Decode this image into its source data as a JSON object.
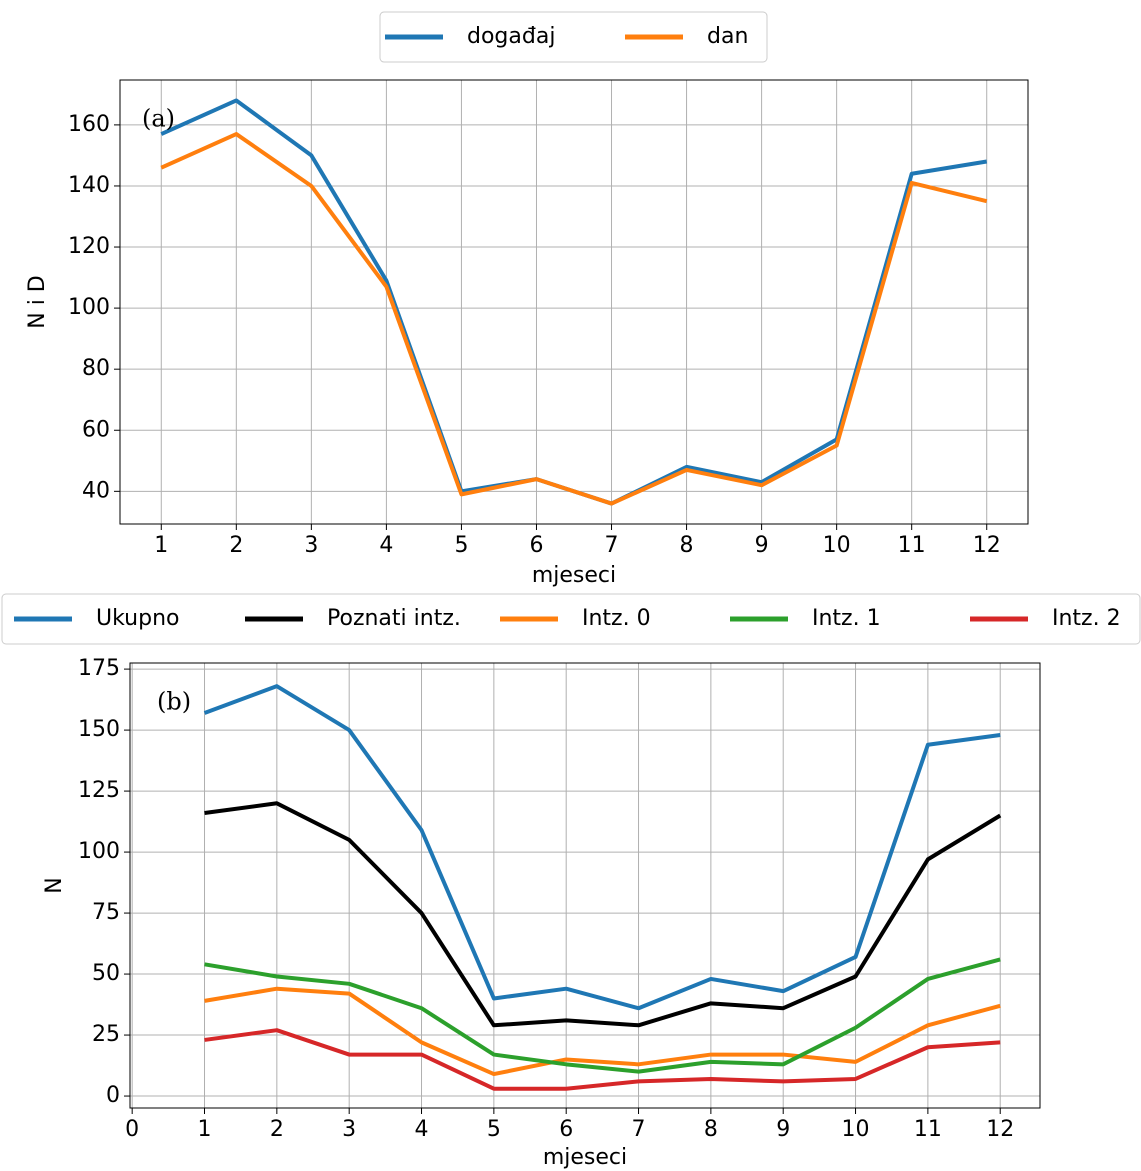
{
  "chart_data": [
    {
      "type": "line",
      "annotation": "(a)",
      "xlabel": "mjeseci",
      "ylabel": "N i D",
      "x": [
        1,
        2,
        3,
        4,
        5,
        6,
        7,
        8,
        9,
        10,
        11,
        12
      ],
      "series": [
        {
          "name": "događaj",
          "color": "#1f77b4",
          "values": [
            157,
            168,
            150,
            109,
            40,
            44,
            36,
            48,
            43,
            57,
            144,
            148
          ]
        },
        {
          "name": "dan",
          "color": "#ff7f0e",
          "values": [
            146,
            157,
            140,
            107,
            39,
            44,
            36,
            47,
            42,
            55,
            141,
            135
          ]
        }
      ],
      "xlim": [
        0.45,
        12.55
      ],
      "xticks": [
        1,
        2,
        3,
        4,
        5,
        6,
        7,
        8,
        9,
        10,
        11,
        12
      ],
      "ylim": [
        29.3,
        174.7
      ],
      "yticks": [
        40,
        60,
        80,
        100,
        120,
        140,
        160
      ],
      "grid": true,
      "legend": "top"
    },
    {
      "type": "line",
      "annotation": "(b)",
      "xlabel": "mjeseci",
      "ylabel": "N",
      "x": [
        1,
        2,
        3,
        4,
        5,
        6,
        7,
        8,
        9,
        10,
        11,
        12
      ],
      "series": [
        {
          "name": "Ukupno",
          "color": "#1f77b4",
          "values": [
            157,
            168,
            150,
            109,
            40,
            44,
            36,
            48,
            43,
            57,
            144,
            148
          ]
        },
        {
          "name": "Poznati intz.",
          "color": "#000000",
          "values": [
            116,
            120,
            105,
            75,
            29,
            31,
            29,
            38,
            36,
            49,
            97,
            115
          ]
        },
        {
          "name": "Intz. 0",
          "color": "#ff7f0e",
          "values": [
            39,
            44,
            42,
            22,
            9,
            15,
            13,
            17,
            17,
            14,
            29,
            37
          ]
        },
        {
          "name": "Intz. 1",
          "color": "#2ca02c",
          "values": [
            54,
            49,
            46,
            36,
            17,
            13,
            10,
            14,
            13,
            28,
            48,
            56
          ]
        },
        {
          "name": "Intz. 2",
          "color": "#d62728",
          "values": [
            23,
            27,
            17,
            17,
            3,
            3,
            6,
            7,
            6,
            7,
            20,
            22
          ]
        }
      ],
      "xlim": [
        -0.03,
        12.55
      ],
      "xticks": [
        0,
        1,
        2,
        3,
        4,
        5,
        6,
        7,
        8,
        9,
        10,
        11,
        12
      ],
      "ylim": [
        -4.9,
        177.5
      ],
      "yticks": [
        0,
        25,
        50,
        75,
        100,
        125,
        150,
        175
      ],
      "grid": true,
      "legend": "top"
    }
  ]
}
